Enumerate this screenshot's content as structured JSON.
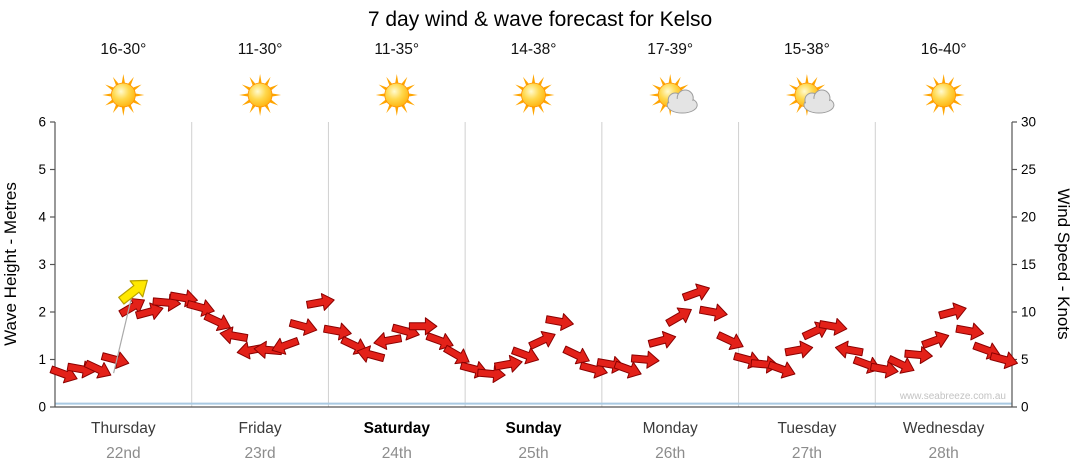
{
  "title": "7 day wind & wave forecast for Kelso",
  "watermark": "www.seabreeze.com.au",
  "y_left": {
    "label": "Wave Height - Metres",
    "ticks": [
      0,
      1,
      2,
      3,
      4,
      5,
      6
    ]
  },
  "y_right": {
    "label": "Wind Speed - Knots",
    "ticks": [
      0,
      5,
      10,
      15,
      20,
      25,
      30
    ]
  },
  "colors": {
    "arrow_fill": "#e32119",
    "arrow_stroke": "#8b0000",
    "grid": "#d0d0d0",
    "axis": "#555555",
    "baseline_blue": "#a9c9e2",
    "tick_text": "#000000",
    "day_text": "#3a3a3a",
    "day_text_bold": "#000000",
    "date_text": "#8c8c8c",
    "temp_text": "#111111",
    "sun_ray": "#ffa500",
    "sun_core_edge": "#ff9000",
    "cloud_fill": "#e4e4e4",
    "cloud_stroke": "#9d9d9d",
    "highlight_stem": "#aaaaaa"
  },
  "chart_data": {
    "type": "line",
    "note": "Wind speed over 7 days drawn as overlapping red directional wind arrows; wave height flat near 0 m (light blue baseline); one yellow highlighted arrow early Thursday",
    "title": "7 day wind & wave forecast for Kelso",
    "categories": [
      "Thursday",
      "Friday",
      "Saturday",
      "Sunday",
      "Monday",
      "Tuesday",
      "Wednesday"
    ],
    "dates": [
      "22nd",
      "23rd",
      "24th",
      "25th",
      "26th",
      "27th",
      "28th"
    ],
    "temps": [
      "16-30°",
      "11-30°",
      "11-35°",
      "14-38°",
      "17-39°",
      "15-38°",
      "16-40°"
    ],
    "icons": [
      "sunny",
      "sunny",
      "sunny",
      "sunny",
      "partly-cloudy",
      "partly-cloudy",
      "sunny"
    ],
    "bold_days": [
      false,
      false,
      true,
      true,
      false,
      false,
      false
    ],
    "points_per_day": 8,
    "ylabel_left": "Wave Height - Metres",
    "ylabel_right": "Wind Speed - Knots",
    "ylim_left": [
      0,
      6
    ],
    "ylim_right": [
      0,
      30
    ],
    "series": [
      {
        "name": "Wind Speed (knots)",
        "values": [
          3.5,
          4,
          4,
          5,
          10.5,
          10,
          11,
          11.5,
          10.5,
          9,
          7.5,
          6,
          6,
          6.5,
          8.5,
          11,
          8,
          6.5,
          5.5,
          7,
          8,
          8.5,
          7,
          5.5,
          4,
          3.5,
          4.5,
          5.5,
          7,
          9,
          5.5,
          4,
          4.5,
          4,
          5,
          7,
          9.5,
          12,
          10,
          7,
          5,
          4.5,
          4,
          6,
          8,
          8.5,
          6,
          4.5,
          4,
          4.5,
          5.5,
          7,
          10,
          8,
          6,
          5
        ]
      }
    ],
    "wind_dir_deg": [
      20,
      10,
      25,
      15,
      -30,
      -15,
      5,
      10,
      15,
      25,
      190,
      170,
      185,
      160,
      15,
      -10,
      10,
      25,
      195,
      170,
      15,
      0,
      20,
      30,
      15,
      5,
      -10,
      20,
      -25,
      10,
      25,
      15,
      10,
      20,
      5,
      -15,
      -30,
      -20,
      10,
      25,
      15,
      5,
      20,
      -10,
      -25,
      10,
      190,
      20,
      10,
      25,
      5,
      -20,
      -15,
      10,
      20,
      15
    ],
    "wave_height_m_baseline": 0.07,
    "highlight_arrow": {
      "day": 0,
      "position": 4.6,
      "knots": 12.2,
      "dir_deg": -38,
      "color": "#ffe800",
      "stroke": "#b8a000"
    }
  }
}
